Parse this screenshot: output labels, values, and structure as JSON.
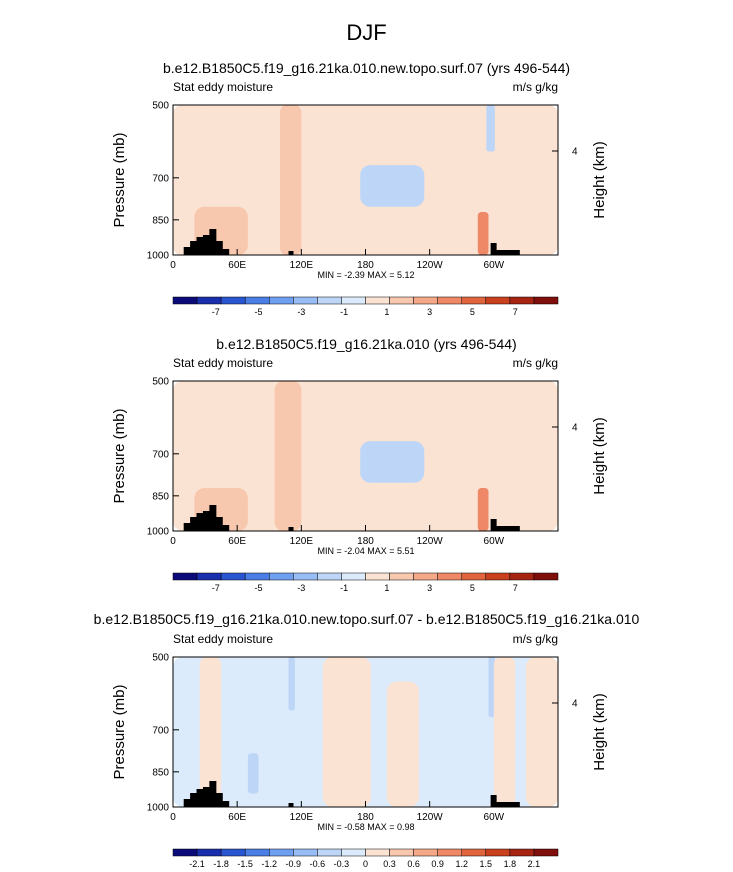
{
  "page": {
    "title": "DJF"
  },
  "chart_data": [
    {
      "type": "heatmap",
      "title": "b.e12.B1850C5.f19_g16.21ka.010.new.topo.surf.07 (yrs 496-544)",
      "left_label": "Stat eddy moisture",
      "right_label": "m/s g/kg",
      "ylabel": "Pressure (mb)",
      "ylabel_right": "Height (km)",
      "y_ticks": [
        "500",
        "700",
        "850",
        "1000"
      ],
      "y_right_ticks": [
        "4"
      ],
      "x_ticks": [
        "0",
        "60E",
        "120E",
        "180",
        "120W",
        "60W"
      ],
      "minmax": "MIN = -2.39  MAX =  5.12",
      "colorbar_labels": [
        "-7",
        "-5",
        "-3",
        "-1",
        "1",
        "3",
        "5",
        "7"
      ],
      "colorbar_colors": [
        "#0b0b7a",
        "#1a2fae",
        "#2a55d0",
        "#4a7ee6",
        "#6f9ff0",
        "#98bdf5",
        "#bdd6f8",
        "#dcebfb",
        "#fbe3d3",
        "#f8c8ae",
        "#f4a888",
        "#ee8866",
        "#e0653f",
        "#c9401e",
        "#a62412",
        "#7e0f0a"
      ],
      "ylim_mb": [
        1000,
        500
      ],
      "xlim_deg": [
        0,
        360
      ],
      "fields": [
        {
          "lon": 0,
          "lon_w": 360,
          "p_top": 500,
          "p_bot": 1000,
          "value": -0.5
        },
        {
          "lon": 0,
          "lon_w": 25,
          "p_top": 500,
          "p_bot": 1000,
          "value": -0.5
        },
        {
          "lon": 25,
          "lon_w": 150,
          "p_top": 500,
          "p_bot": 1000,
          "value": 0.5
        },
        {
          "lon": 60,
          "lon_w": 30,
          "p_top": 500,
          "p_bot": 720,
          "value": -0.5
        },
        {
          "lon": 100,
          "lon_w": 20,
          "p_top": 500,
          "p_bot": 1000,
          "value": 1.5
        },
        {
          "lon": 110,
          "lon_w": 10,
          "p_top": 580,
          "p_bot": 760,
          "value": 2.5
        },
        {
          "lon": 20,
          "lon_w": 50,
          "p_top": 800,
          "p_bot": 1000,
          "value": 1.5
        },
        {
          "lon": 175,
          "lon_w": 60,
          "p_top": 660,
          "p_bot": 800,
          "value": -1.5
        },
        {
          "lon": 175,
          "lon_w": 60,
          "p_top": 840,
          "p_bot": 1000,
          "value": 0.5
        },
        {
          "lon": 275,
          "lon_w": 25,
          "p_top": 500,
          "p_bot": 1000,
          "value": 0.5
        },
        {
          "lon": 293,
          "lon_w": 8,
          "p_top": 500,
          "p_bot": 620,
          "value": -2.5
        },
        {
          "lon": 285,
          "lon_w": 10,
          "p_top": 820,
          "p_bot": 1000,
          "value": 3.5
        },
        {
          "lon": 325,
          "lon_w": 35,
          "p_top": 500,
          "p_bot": 1000,
          "value": 0.5
        }
      ]
    },
    {
      "type": "heatmap",
      "title": "b.e12.B1850C5.f19_g16.21ka.010 (yrs 496-544)",
      "left_label": "Stat eddy moisture",
      "right_label": "m/s g/kg",
      "ylabel": "Pressure (mb)",
      "ylabel_right": "Height (km)",
      "y_ticks": [
        "500",
        "700",
        "850",
        "1000"
      ],
      "y_right_ticks": [
        "4"
      ],
      "x_ticks": [
        "0",
        "60E",
        "120E",
        "180",
        "120W",
        "60W"
      ],
      "minmax": "MIN = -2.04  MAX =  5.51",
      "colorbar_labels": [
        "-7",
        "-5",
        "-3",
        "-1",
        "1",
        "3",
        "5",
        "7"
      ],
      "colorbar_colors": [
        "#0b0b7a",
        "#1a2fae",
        "#2a55d0",
        "#4a7ee6",
        "#6f9ff0",
        "#98bdf5",
        "#bdd6f8",
        "#dcebfb",
        "#fbe3d3",
        "#f8c8ae",
        "#f4a888",
        "#ee8866",
        "#e0653f",
        "#c9401e",
        "#a62412",
        "#7e0f0a"
      ],
      "ylim_mb": [
        1000,
        500
      ],
      "xlim_deg": [
        0,
        360
      ],
      "fields": [
        {
          "lon": 0,
          "lon_w": 360,
          "p_top": 500,
          "p_bot": 1000,
          "value": -0.5
        },
        {
          "lon": 25,
          "lon_w": 140,
          "p_top": 500,
          "p_bot": 1000,
          "value": 0.5
        },
        {
          "lon": 55,
          "lon_w": 30,
          "p_top": 520,
          "p_bot": 720,
          "value": -0.5
        },
        {
          "lon": 95,
          "lon_w": 25,
          "p_top": 500,
          "p_bot": 1000,
          "value": 1.5
        },
        {
          "lon": 108,
          "lon_w": 10,
          "p_top": 560,
          "p_bot": 760,
          "value": 2.5
        },
        {
          "lon": 20,
          "lon_w": 50,
          "p_top": 820,
          "p_bot": 1000,
          "value": 1.5
        },
        {
          "lon": 175,
          "lon_w": 60,
          "p_top": 660,
          "p_bot": 800,
          "value": -1.5
        },
        {
          "lon": 175,
          "lon_w": 60,
          "p_top": 840,
          "p_bot": 1000,
          "value": 0.5
        },
        {
          "lon": 275,
          "lon_w": 25,
          "p_top": 720,
          "p_bot": 1000,
          "value": 0.5
        },
        {
          "lon": 285,
          "lon_w": 10,
          "p_top": 820,
          "p_bot": 1000,
          "value": 3.5
        },
        {
          "lon": 330,
          "lon_w": 30,
          "p_top": 500,
          "p_bot": 1000,
          "value": 0.5
        }
      ]
    },
    {
      "type": "heatmap",
      "title": "b.e12.B1850C5.f19_g16.21ka.010.new.topo.surf.07 - b.e12.B1850C5.f19_g16.21ka.010",
      "left_label": "Stat eddy moisture",
      "right_label": "m/s g/kg",
      "ylabel": "Pressure (mb)",
      "ylabel_right": "Height (km)",
      "y_ticks": [
        "500",
        "700",
        "850",
        "1000"
      ],
      "y_right_ticks": [
        "4"
      ],
      "x_ticks": [
        "0",
        "60E",
        "120E",
        "180",
        "120W",
        "60W"
      ],
      "minmax": "MIN = -0.58  MAX =  0.98",
      "colorbar_labels": [
        "-2.1",
        "-1.8",
        "-1.5",
        "-1.2",
        "-0.9",
        "-0.6",
        "-0.3",
        "0",
        "0.3",
        "0.6",
        "0.9",
        "1.2",
        "1.5",
        "1.8",
        "2.1"
      ],
      "colorbar_colors": [
        "#0b0b7a",
        "#1a2fae",
        "#2a55d0",
        "#4a7ee6",
        "#6f9ff0",
        "#98bdf5",
        "#bdd6f8",
        "#dcebfb",
        "#fbe3d3",
        "#f8c8ae",
        "#f4a888",
        "#ee8866",
        "#e0653f",
        "#c9401e",
        "#a62412",
        "#7e0f0a"
      ],
      "ylim_mb": [
        1000,
        500
      ],
      "xlim_deg": [
        0,
        360
      ],
      "fields": [
        {
          "lon": 0,
          "lon_w": 360,
          "p_top": 500,
          "p_bot": 1000,
          "value": -0.15
        },
        {
          "lon": 25,
          "lon_w": 20,
          "p_top": 500,
          "p_bot": 1000,
          "value": 0.15
        },
        {
          "lon": 70,
          "lon_w": 10,
          "p_top": 780,
          "p_bot": 940,
          "value": -0.45
        },
        {
          "lon": 108,
          "lon_w": 6,
          "p_top": 500,
          "p_bot": 640,
          "value": -0.45
        },
        {
          "lon": 140,
          "lon_w": 45,
          "p_top": 500,
          "p_bot": 1000,
          "value": 0.15
        },
        {
          "lon": 200,
          "lon_w": 30,
          "p_top": 560,
          "p_bot": 1000,
          "value": 0.15
        },
        {
          "lon": 295,
          "lon_w": 6,
          "p_top": 500,
          "p_bot": 660,
          "value": -0.45
        },
        {
          "lon": 300,
          "lon_w": 20,
          "p_top": 500,
          "p_bot": 1000,
          "value": 0.15
        },
        {
          "lon": 330,
          "lon_w": 30,
          "p_top": 500,
          "p_bot": 1000,
          "value": 0.15
        }
      ]
    }
  ]
}
